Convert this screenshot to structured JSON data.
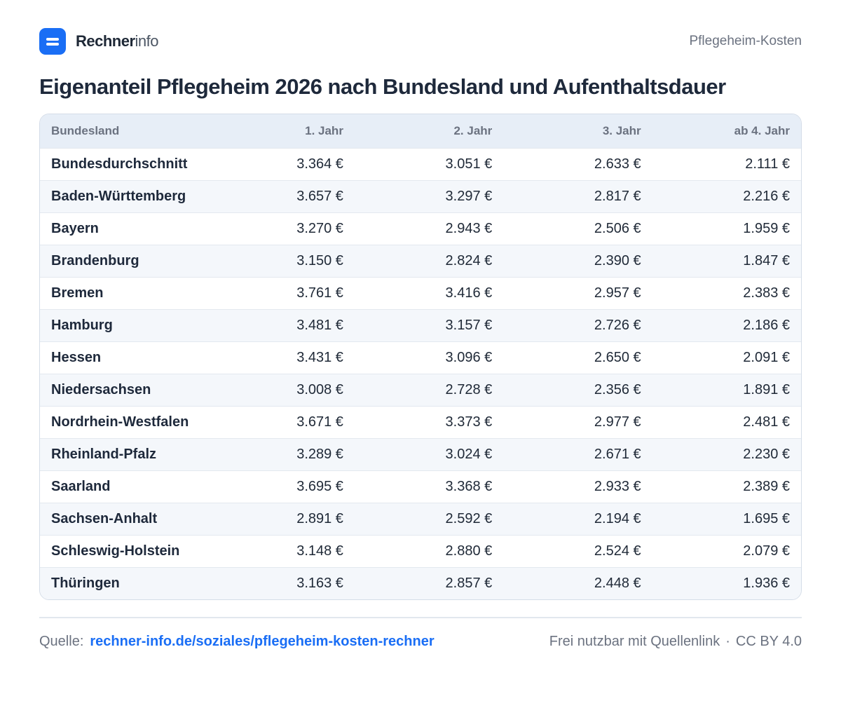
{
  "header": {
    "brand_strong": "Rechner",
    "brand_light": "info",
    "tag": "Pflegeheim-Kosten"
  },
  "title": "Eigenanteil Pflegeheim 2026 nach Bundesland und Aufenthaltsdauer",
  "table": {
    "columns": [
      "Bundesland",
      "1. Jahr",
      "2. Jahr",
      "3. Jahr",
      "ab 4. Jahr"
    ],
    "rows": [
      [
        "Bundesdurchschnitt",
        "3.364 €",
        "3.051 €",
        "2.633 €",
        "2.111 €"
      ],
      [
        "Baden-Württemberg",
        "3.657 €",
        "3.297 €",
        "2.817 €",
        "2.216 €"
      ],
      [
        "Bayern",
        "3.270 €",
        "2.943 €",
        "2.506 €",
        "1.959 €"
      ],
      [
        "Brandenburg",
        "3.150 €",
        "2.824 €",
        "2.390 €",
        "1.847 €"
      ],
      [
        "Bremen",
        "3.761 €",
        "3.416 €",
        "2.957 €",
        "2.383 €"
      ],
      [
        "Hamburg",
        "3.481 €",
        "3.157 €",
        "2.726 €",
        "2.186 €"
      ],
      [
        "Hessen",
        "3.431 €",
        "3.096 €",
        "2.650 €",
        "2.091 €"
      ],
      [
        "Niedersachsen",
        "3.008 €",
        "2.728 €",
        "2.356 €",
        "1.891 €"
      ],
      [
        "Nordrhein-Westfalen",
        "3.671 €",
        "3.373 €",
        "2.977 €",
        "2.481 €"
      ],
      [
        "Rheinland-Pfalz",
        "3.289 €",
        "3.024 €",
        "2.671 €",
        "2.230 €"
      ],
      [
        "Saarland",
        "3.695 €",
        "3.368 €",
        "2.933 €",
        "2.389 €"
      ],
      [
        "Sachsen-Anhalt",
        "2.891 €",
        "2.592 €",
        "2.194 €",
        "1.695 €"
      ],
      [
        "Schleswig-Holstein",
        "3.148 €",
        "2.880 €",
        "2.524 €",
        "2.079 €"
      ],
      [
        "Thüringen",
        "3.163 €",
        "2.857 €",
        "2.448 €",
        "1.936 €"
      ]
    ]
  },
  "footer": {
    "source_label": "Quelle:",
    "source_link": "rechner-info.de/soziales/pflegeheim-kosten-rechner",
    "license_text": "Frei nutzbar mit Quellenlink",
    "separator": "·",
    "license": "CC BY 4.0"
  },
  "colors": {
    "accent": "#1a6ef5",
    "header_row": "#e7eef7",
    "stripe": "#f4f7fb"
  }
}
